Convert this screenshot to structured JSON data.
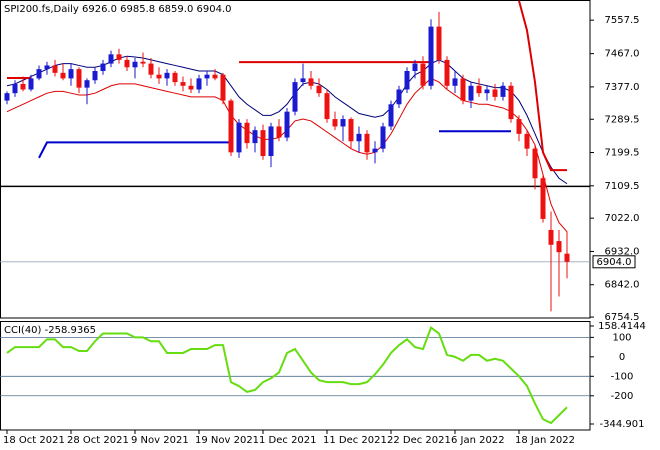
{
  "chart_data": [
    {
      "type": "candlestick",
      "title": "SPI200.fs,Daily  6926.0 6985.8 6859.0 6904.0",
      "categories": [
        "18 Oct 2021",
        null,
        null,
        null,
        null,
        null,
        null,
        null,
        "28 Oct 2021",
        null,
        null,
        null,
        null,
        null,
        null,
        null,
        "9 Nov 2021",
        null,
        null,
        null,
        null,
        null,
        null,
        null,
        "19 Nov 2021",
        null,
        null,
        null,
        null,
        null,
        null,
        null,
        "1 Dec 2021",
        null,
        null,
        null,
        null,
        null,
        null,
        null,
        "11 Dec 2021",
        null,
        null,
        null,
        null,
        null,
        null,
        null,
        "22 Dec 2021",
        null,
        null,
        null,
        null,
        null,
        null,
        null,
        "6 Jan 2022",
        null,
        null,
        null,
        null,
        null,
        null,
        null,
        "18 Jan 2022",
        null,
        null,
        null,
        null,
        null,
        null
      ],
      "open": [
        7340,
        7360,
        7385,
        7370,
        7400,
        7425,
        7435,
        7415,
        7400,
        7425,
        7375,
        7395,
        7420,
        7440,
        7465,
        7450,
        7430,
        7445,
        7440,
        7410,
        7400,
        7415,
        7390,
        7380,
        7370,
        7400,
        7410,
        7410,
        7340,
        7200,
        7280,
        7225,
        7260,
        7190,
        7270,
        7240,
        7310,
        7390,
        7400,
        7380,
        7360,
        7290,
        7270,
        7290,
        7230,
        7250,
        7200,
        7210,
        7270,
        7330,
        7370,
        7420,
        7440,
        7380,
        7540,
        7450,
        7380,
        7400,
        7340,
        7380,
        7360,
        7370,
        7350,
        7380,
        7290,
        7250,
        7210,
        7130,
        6990,
        6960,
        6926
      ],
      "high": [
        7365,
        7395,
        7405,
        7410,
        7435,
        7445,
        7450,
        7440,
        7440,
        7430,
        7400,
        7430,
        7450,
        7475,
        7480,
        7460,
        7455,
        7470,
        7455,
        7430,
        7425,
        7420,
        7405,
        7400,
        7410,
        7420,
        7425,
        7415,
        7345,
        7290,
        7290,
        7270,
        7275,
        7280,
        7290,
        7320,
        7400,
        7440,
        7420,
        7400,
        7370,
        7310,
        7300,
        7295,
        7270,
        7260,
        7230,
        7280,
        7340,
        7380,
        7430,
        7450,
        7460,
        7560,
        7580,
        7460,
        7420,
        7410,
        7390,
        7400,
        7380,
        7385,
        7390,
        7390,
        7300,
        7260,
        7220,
        7140,
        7040,
        6990,
        6985.8
      ],
      "low": [
        7330,
        7350,
        7365,
        7365,
        7395,
        7410,
        7405,
        7395,
        7380,
        7360,
        7330,
        7385,
        7410,
        7430,
        7440,
        7420,
        7400,
        7430,
        7400,
        7385,
        7380,
        7380,
        7365,
        7360,
        7360,
        7380,
        7395,
        7330,
        7190,
        7185,
        7210,
        7200,
        7180,
        7160,
        7230,
        7230,
        7300,
        7380,
        7370,
        7350,
        7280,
        7260,
        7230,
        7210,
        7200,
        7180,
        7170,
        7200,
        7260,
        7320,
        7360,
        7400,
        7370,
        7370,
        7440,
        7370,
        7360,
        7330,
        7320,
        7350,
        7340,
        7340,
        7340,
        7280,
        7230,
        7190,
        7100,
        7010,
        6770,
        6810,
        6859
      ],
      "close": [
        7360,
        7385,
        7370,
        7400,
        7425,
        7435,
        7415,
        7400,
        7425,
        7375,
        7395,
        7420,
        7440,
        7465,
        7450,
        7430,
        7445,
        7440,
        7410,
        7400,
        7415,
        7390,
        7380,
        7370,
        7400,
        7410,
        7400,
        7340,
        7200,
        7280,
        7225,
        7260,
        7190,
        7270,
        7240,
        7310,
        7390,
        7400,
        7380,
        7360,
        7290,
        7270,
        7290,
        7230,
        7250,
        7200,
        7210,
        7270,
        7330,
        7370,
        7420,
        7440,
        7380,
        7540,
        7450,
        7380,
        7400,
        7340,
        7380,
        7360,
        7370,
        7350,
        7380,
        7290,
        7250,
        7210,
        7130,
        7020,
        6950,
        6930,
        6904
      ],
      "up_color": "#1a1ad0",
      "down_color": "#ee1111",
      "overlays": [
        {
          "color": "#00007a",
          "width": 1,
          "values": [
            7380,
            7385,
            7395,
            7405,
            7415,
            7425,
            7435,
            7440,
            7440,
            7435,
            7430,
            7430,
            7435,
            7445,
            7455,
            7460,
            7458,
            7455,
            7450,
            7445,
            7440,
            7435,
            7430,
            7425,
            7420,
            7420,
            7420,
            7410,
            7380,
            7350,
            7330,
            7315,
            7300,
            7300,
            7310,
            7330,
            7360,
            7385,
            7390,
            7385,
            7370,
            7350,
            7335,
            7320,
            7305,
            7300,
            7295,
            7300,
            7320,
            7350,
            7385,
            7410,
            7420,
            7440,
            7450,
            7440,
            7420,
            7400,
            7390,
            7385,
            7380,
            7375,
            7375,
            7365,
            7340,
            7300,
            7250,
            7200,
            7160,
            7130,
            7115
          ]
        },
        {
          "color": "#dd0000",
          "width": 1,
          "values": [
            7310,
            7320,
            7330,
            7340,
            7350,
            7360,
            7365,
            7365,
            7360,
            7355,
            7355,
            7360,
            7370,
            7380,
            7385,
            7385,
            7385,
            7380,
            7375,
            7370,
            7365,
            7360,
            7355,
            7350,
            7350,
            7350,
            7350,
            7340,
            7300,
            7275,
            7260,
            7245,
            7235,
            7235,
            7240,
            7260,
            7285,
            7290,
            7285,
            7270,
            7255,
            7240,
            7225,
            7210,
            7200,
            7195,
            7200,
            7220,
            7250,
            7290,
            7330,
            7360,
            7380,
            7400,
            7390,
            7370,
            7355,
            7340,
            7335,
            7330,
            7330,
            7325,
            7320,
            7310,
            7290,
            7260,
            7220,
            7140,
            7060,
            7010,
            6985
          ]
        },
        {
          "color": "#dd0000",
          "width": 2,
          "values": [
            7401,
            7401,
            7401,
            7401,
            null,
            null,
            null,
            null,
            null,
            null,
            null,
            null,
            null,
            null,
            null,
            null,
            null,
            null,
            null,
            null,
            null,
            null,
            null,
            null,
            null,
            null,
            null,
            null,
            null,
            7444,
            7444,
            7444,
            7444,
            7444,
            7444,
            7444,
            7444,
            7444,
            7444,
            7444,
            7444,
            7444,
            7444,
            7444,
            7444,
            7444,
            7444,
            7444,
            7444,
            7444,
            7444,
            7444,
            7444,
            7444,
            null,
            null,
            null,
            null,
            null,
            null,
            null,
            null,
            null,
            null,
            7610,
            7530,
            7390,
            7200,
            7152,
            7152,
            7152
          ]
        },
        {
          "color": "#0000cc",
          "width": 2,
          "values": [
            null,
            null,
            null,
            null,
            7185,
            7227,
            7227,
            7227,
            7227,
            7227,
            7227,
            7227,
            7227,
            7227,
            7227,
            7227,
            7227,
            7227,
            7227,
            7227,
            7227,
            7227,
            7227,
            7227,
            7227,
            7227,
            7227,
            7227,
            7227,
            null,
            null,
            null,
            null,
            null,
            null,
            null,
            null,
            null,
            null,
            null,
            null,
            null,
            null,
            null,
            null,
            null,
            null,
            null,
            null,
            null,
            null,
            null,
            null,
            null,
            7257,
            7257,
            7257,
            7257,
            7257,
            7257,
            7257,
            7257,
            7257,
            7257,
            null,
            null,
            null,
            null,
            null,
            null,
            null
          ]
        }
      ],
      "hline": {
        "value": 7108,
        "color": "#000000"
      },
      "last_price": {
        "value": 6904,
        "label": "6904.0"
      },
      "ylim": [
        6752,
        7612
      ],
      "yticks": [
        7557.5,
        {
          "value": 7467,
          "label": "7467.0"
        },
        {
          "value": 7377,
          "label": "7377.0"
        },
        7289.5,
        7199.5,
        7109.5,
        {
          "value": 7022,
          "label": "7022.0"
        },
        {
          "value": 6932,
          "label": "6932.0"
        },
        {
          "value": 6842,
          "label": "6842.0"
        },
        6754.5
      ]
    },
    {
      "type": "line",
      "title": "CCI(40) -258.9365",
      "color": "#66dd11",
      "values": [
        20,
        50,
        50,
        50,
        50,
        90,
        90,
        50,
        50,
        30,
        30,
        80,
        120,
        120,
        120,
        120,
        100,
        100,
        80,
        80,
        20,
        20,
        20,
        40,
        40,
        40,
        60,
        60,
        -130,
        -150,
        -180,
        -170,
        -130,
        -110,
        -80,
        20,
        40,
        -20,
        -80,
        -120,
        -130,
        -130,
        -130,
        -140,
        -140,
        -130,
        -90,
        -40,
        20,
        60,
        90,
        50,
        40,
        150,
        120,
        10,
        0,
        -20,
        10,
        10,
        -20,
        -10,
        -20,
        -60,
        -100,
        -150,
        -240,
        -320,
        -340,
        -300,
        -258.9365
      ],
      "levels": [
        100,
        -100,
        -200
      ],
      "level_color": "#4a7090",
      "ylim": [
        -344.901,
        158.4144
      ],
      "yticks": [
        158.4144,
        100,
        0,
        -100,
        -200,
        -344.901
      ]
    }
  ]
}
